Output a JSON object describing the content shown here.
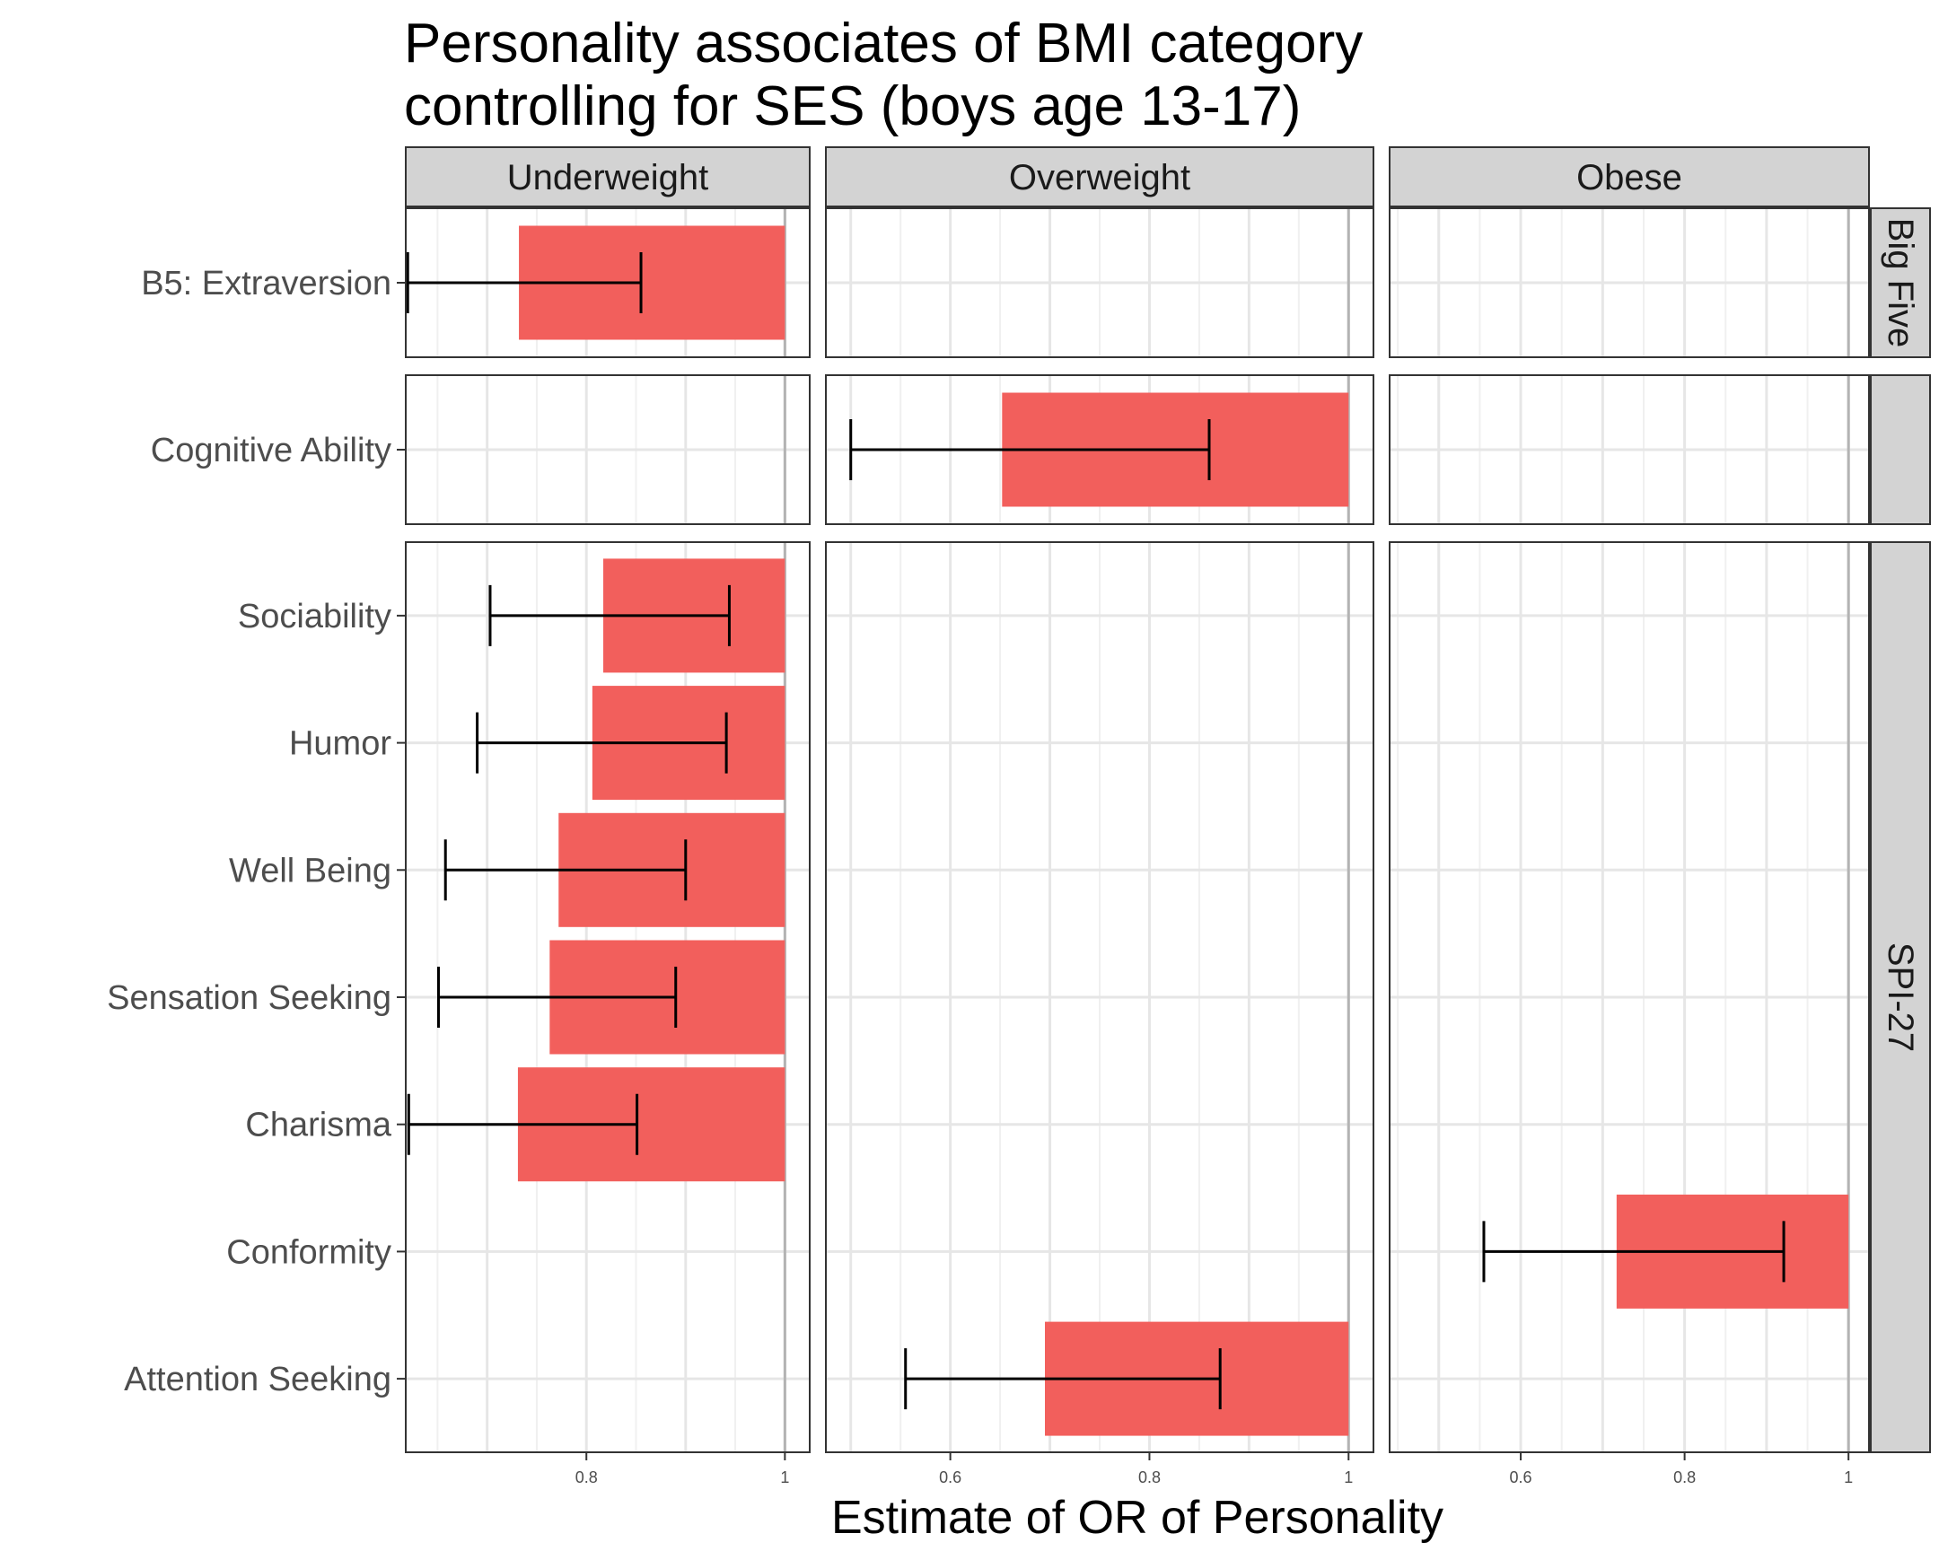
{
  "chart_data": {
    "type": "bar",
    "title_lines": [
      "Personality associates of BMI category",
      "controlling for SES (boys age 13-17)"
    ],
    "xlabel": "Estimate of OR of Personality",
    "colors": {
      "bar": "#F25F5C",
      "strip": "#D3D3D3",
      "grid": "#E6E6E6",
      "refline": "#B3B3B3"
    },
    "grid": true,
    "columns": [
      {
        "name": "Underweight",
        "xlim": [
          0.618,
          1.025
        ],
        "ticks": [
          {
            "value": 0.8,
            "label": "0.8"
          },
          {
            "value": 1,
            "label": "1"
          }
        ]
      },
      {
        "name": "Overweight",
        "xlim": [
          0.475,
          1.025
        ],
        "ticks": [
          {
            "value": 0.6,
            "label": "0.6"
          },
          {
            "value": 0.8,
            "label": "0.8"
          },
          {
            "value": 1,
            "label": "1"
          }
        ]
      },
      {
        "name": "Obese",
        "xlim": [
          0.44,
          1.025
        ],
        "ticks": [
          {
            "value": 0.6,
            "label": "0.6"
          },
          {
            "value": 0.8,
            "label": "0.8"
          },
          {
            "value": 1,
            "label": "1"
          }
        ]
      }
    ],
    "rows": [
      {
        "name": "Big Five",
        "categories": [
          "B5: Extraversion"
        ]
      },
      {
        "name": "",
        "categories": [
          "Cognitive Ability"
        ]
      },
      {
        "name": "SPI-27",
        "categories": [
          "Sociability",
          "Humor",
          "Well Being",
          "Sensation Seeking",
          "Charisma",
          "Conformity",
          "Attention Seeking"
        ]
      }
    ],
    "points": [
      {
        "column": "Underweight",
        "category": "B5: Extraversion",
        "estimate": 0.732,
        "ci": [
          0.62,
          0.855
        ]
      },
      {
        "column": "Overweight",
        "category": "Cognitive Ability",
        "estimate": 0.652,
        "ci": [
          0.5,
          0.86
        ]
      },
      {
        "column": "Underweight",
        "category": "Sociability",
        "estimate": 0.817,
        "ci": [
          0.703,
          0.944
        ]
      },
      {
        "column": "Underweight",
        "category": "Humor",
        "estimate": 0.806,
        "ci": [
          0.69,
          0.941
        ]
      },
      {
        "column": "Underweight",
        "category": "Well Being",
        "estimate": 0.772,
        "ci": [
          0.658,
          0.9
        ]
      },
      {
        "column": "Underweight",
        "category": "Sensation Seeking",
        "estimate": 0.763,
        "ci": [
          0.651,
          0.89
        ]
      },
      {
        "column": "Underweight",
        "category": "Charisma",
        "estimate": 0.731,
        "ci": [
          0.621,
          0.851
        ]
      },
      {
        "column": "Obese",
        "category": "Conformity",
        "estimate": 0.717,
        "ci": [
          0.555,
          0.921
        ]
      },
      {
        "column": "Overweight",
        "category": "Attention Seeking",
        "estimate": 0.695,
        "ci": [
          0.555,
          0.871
        ]
      }
    ]
  }
}
